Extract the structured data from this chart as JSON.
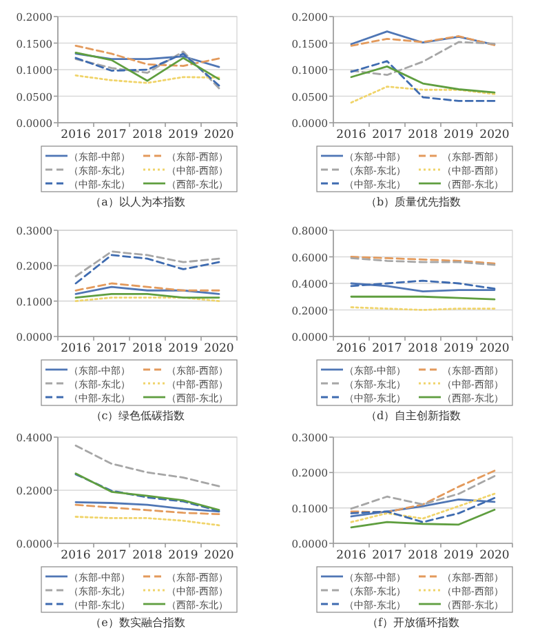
{
  "chart_data": [
    {
      "type": "line",
      "title": "（a）以人为本指数",
      "categories": [
        "2016",
        "2017",
        "2018",
        "2019",
        "2020"
      ],
      "ylim": [
        0,
        0.2
      ],
      "yticks": [
        {
          "value": 0,
          "label": "0.0000"
        },
        {
          "value": 0.05,
          "label": "0.0500"
        },
        {
          "value": 0.1,
          "label": "0.1000"
        },
        {
          "value": 0.15,
          "label": "0.1500"
        },
        {
          "value": 0.2,
          "label": "0.2000"
        }
      ],
      "grid": "y",
      "legend": "bottom",
      "series": [
        {
          "name": "（东部-中部）",
          "color": "#4f76b5",
          "line_style": "solid",
          "values": [
            0.13,
            0.12,
            0.12,
            0.125,
            0.105
          ]
        },
        {
          "name": "（东部-西部）",
          "color": "#e39a5c",
          "line_style": "dashed",
          "values": [
            0.145,
            0.13,
            0.11,
            0.107,
            0.121
          ]
        },
        {
          "name": "（东部-东北）",
          "color": "#a6a6a6",
          "line_style": "dashed",
          "values": [
            0.12,
            0.103,
            0.094,
            0.134,
            0.065
          ]
        },
        {
          "name": "（中部-西部）",
          "color": "#f0d46a",
          "line_style": "dotted",
          "values": [
            0.089,
            0.08,
            0.075,
            0.086,
            0.085
          ]
        },
        {
          "name": "（中部-东北）",
          "color": "#3e6bb0",
          "line_style": "dashed",
          "values": [
            0.122,
            0.098,
            0.1,
            0.13,
            0.07
          ]
        },
        {
          "name": "（西部-东北）",
          "color": "#5f9e3f",
          "line_style": "solid",
          "values": [
            0.132,
            0.118,
            0.079,
            0.122,
            0.082
          ]
        }
      ]
    },
    {
      "type": "line",
      "title": "（b）质量优先指数",
      "categories": [
        "2016",
        "2017",
        "2018",
        "2019",
        "2020"
      ],
      "ylim": [
        0,
        0.2
      ],
      "yticks": [
        {
          "value": 0,
          "label": "0.0000"
        },
        {
          "value": 0.05,
          "label": "0.0500"
        },
        {
          "value": 0.1,
          "label": "0.1000"
        },
        {
          "value": 0.15,
          "label": "0.1500"
        },
        {
          "value": 0.2,
          "label": "0.2000"
        }
      ],
      "grid": "y",
      "legend": "bottom",
      "series": [
        {
          "name": "（东部-中部）",
          "color": "#4f76b5",
          "line_style": "solid",
          "values": [
            0.148,
            0.172,
            0.151,
            0.162,
            0.147
          ]
        },
        {
          "name": "（东部-西部）",
          "color": "#e39a5c",
          "line_style": "dashed",
          "values": [
            0.145,
            0.158,
            0.152,
            0.163,
            0.146
          ]
        },
        {
          "name": "（东部-东北）",
          "color": "#a6a6a6",
          "line_style": "dashed",
          "values": [
            0.098,
            0.09,
            0.115,
            0.152,
            0.149
          ]
        },
        {
          "name": "（中部-西部）",
          "color": "#f0d46a",
          "line_style": "dotted",
          "values": [
            0.038,
            0.068,
            0.062,
            0.062,
            0.054
          ]
        },
        {
          "name": "（中部-东北）",
          "color": "#3e6bb0",
          "line_style": "dashed",
          "values": [
            0.096,
            0.116,
            0.048,
            0.041,
            0.041
          ]
        },
        {
          "name": "（西部-东北）",
          "color": "#5f9e3f",
          "line_style": "solid",
          "values": [
            0.086,
            0.106,
            0.074,
            0.063,
            0.057
          ]
        }
      ]
    },
    {
      "type": "line",
      "title": "（c）绿色低碳指数",
      "categories": [
        "2016",
        "2017",
        "2018",
        "2019",
        "2020"
      ],
      "ylim": [
        0,
        0.3
      ],
      "yticks": [
        {
          "value": 0,
          "label": "0.0000"
        },
        {
          "value": 0.1,
          "label": "0.1000"
        },
        {
          "value": 0.2,
          "label": "0.2000"
        },
        {
          "value": 0.3,
          "label": "0.3000"
        }
      ],
      "grid": "y",
      "legend": "bottom",
      "series": [
        {
          "name": "（东部-中部）",
          "color": "#4f76b5",
          "line_style": "solid",
          "values": [
            0.12,
            0.14,
            0.13,
            0.13,
            0.12
          ]
        },
        {
          "name": "（东部-西部）",
          "color": "#e39a5c",
          "line_style": "dashed",
          "values": [
            0.13,
            0.15,
            0.14,
            0.13,
            0.13
          ]
        },
        {
          "name": "（东部-东北）",
          "color": "#a6a6a6",
          "line_style": "dashed",
          "values": [
            0.17,
            0.24,
            0.23,
            0.21,
            0.22
          ]
        },
        {
          "name": "（中部-西部）",
          "color": "#f0d46a",
          "line_style": "dotted",
          "values": [
            0.1,
            0.11,
            0.11,
            0.11,
            0.1
          ]
        },
        {
          "name": "（中部-东北）",
          "color": "#3e6bb0",
          "line_style": "dashed",
          "values": [
            0.15,
            0.23,
            0.22,
            0.19,
            0.21
          ]
        },
        {
          "name": "（西部-东北）",
          "color": "#5f9e3f",
          "line_style": "solid",
          "values": [
            0.11,
            0.12,
            0.12,
            0.11,
            0.11
          ]
        }
      ]
    },
    {
      "type": "line",
      "title": "（d）自主创新指数",
      "categories": [
        "2016",
        "2017",
        "2018",
        "2019",
        "2020"
      ],
      "ylim": [
        0,
        0.8
      ],
      "yticks": [
        {
          "value": 0,
          "label": "0.0000"
        },
        {
          "value": 0.2,
          "label": "0.2000"
        },
        {
          "value": 0.4,
          "label": "0.4000"
        },
        {
          "value": 0.6,
          "label": "0.6000"
        },
        {
          "value": 0.8,
          "label": "0.8000"
        }
      ],
      "grid": "y",
      "legend": "bottom",
      "series": [
        {
          "name": "（东部-中部）",
          "color": "#4f76b5",
          "line_style": "solid",
          "values": [
            0.4,
            0.38,
            0.34,
            0.35,
            0.35
          ]
        },
        {
          "name": "（东部-西部）",
          "color": "#e39a5c",
          "line_style": "dashed",
          "values": [
            0.6,
            0.59,
            0.58,
            0.57,
            0.55
          ]
        },
        {
          "name": "（东部-东北）",
          "color": "#a6a6a6",
          "line_style": "dashed",
          "values": [
            0.59,
            0.57,
            0.56,
            0.56,
            0.54
          ]
        },
        {
          "name": "（中部-西部）",
          "color": "#f0d46a",
          "line_style": "dotted",
          "values": [
            0.22,
            0.21,
            0.2,
            0.21,
            0.21
          ]
        },
        {
          "name": "（中部-东北）",
          "color": "#3e6bb0",
          "line_style": "dashed",
          "values": [
            0.38,
            0.4,
            0.42,
            0.4,
            0.36
          ]
        },
        {
          "name": "（西部-东北）",
          "color": "#5f9e3f",
          "line_style": "solid",
          "values": [
            0.3,
            0.3,
            0.3,
            0.29,
            0.28
          ]
        }
      ]
    },
    {
      "type": "line",
      "title": "（e）数实融合指数",
      "categories": [
        "2016",
        "2017",
        "2018",
        "2019",
        "2020"
      ],
      "ylim": [
        0,
        0.4
      ],
      "yticks": [
        {
          "value": 0,
          "label": "0.0000"
        },
        {
          "value": 0.2,
          "label": "0.2000"
        },
        {
          "value": 0.4,
          "label": "0.4000"
        }
      ],
      "grid": "y",
      "legend": "bottom",
      "series": [
        {
          "name": "（东部-中部）",
          "color": "#4f76b5",
          "line_style": "solid",
          "values": [
            0.155,
            0.152,
            0.145,
            0.13,
            0.12
          ]
        },
        {
          "name": "（东部-西部）",
          "color": "#e39a5c",
          "line_style": "dashed",
          "values": [
            0.145,
            0.135,
            0.125,
            0.115,
            0.11
          ]
        },
        {
          "name": "（东部-东北）",
          "color": "#a6a6a6",
          "line_style": "dashed",
          "values": [
            0.368,
            0.3,
            0.267,
            0.248,
            0.215
          ]
        },
        {
          "name": "（中部-西部）",
          "color": "#f0d46a",
          "line_style": "dotted",
          "values": [
            0.1,
            0.095,
            0.095,
            0.085,
            0.068
          ]
        },
        {
          "name": "（中部-东北）",
          "color": "#3e6bb0",
          "line_style": "dashed",
          "values": [
            0.26,
            0.198,
            0.173,
            0.158,
            0.122
          ]
        },
        {
          "name": "（西部-东北）",
          "color": "#5f9e3f",
          "line_style": "solid",
          "values": [
            0.263,
            0.194,
            0.179,
            0.162,
            0.126
          ]
        }
      ]
    },
    {
      "type": "line",
      "title": "（f）开放循环指数",
      "categories": [
        "2016",
        "2017",
        "2018",
        "2019",
        "2020"
      ],
      "ylim": [
        0,
        0.3
      ],
      "yticks": [
        {
          "value": 0,
          "label": "0.0000"
        },
        {
          "value": 0.1,
          "label": "0.1000"
        },
        {
          "value": 0.2,
          "label": "0.2000"
        },
        {
          "value": 0.3,
          "label": "0.3000"
        }
      ],
      "grid": "y",
      "legend": "bottom",
      "series": [
        {
          "name": "（东部-中部）",
          "color": "#4f76b5",
          "line_style": "solid",
          "values": [
            0.076,
            0.09,
            0.105,
            0.124,
            0.117
          ]
        },
        {
          "name": "（东部-西部）",
          "color": "#e39a5c",
          "line_style": "dashed",
          "values": [
            0.09,
            0.088,
            0.11,
            0.16,
            0.205
          ]
        },
        {
          "name": "（东部-东北）",
          "color": "#a6a6a6",
          "line_style": "dashed",
          "values": [
            0.098,
            0.132,
            0.11,
            0.14,
            0.19
          ]
        },
        {
          "name": "（中部-西部）",
          "color": "#f0d46a",
          "line_style": "dotted",
          "values": [
            0.06,
            0.085,
            0.07,
            0.105,
            0.14
          ]
        },
        {
          "name": "（中部-东北）",
          "color": "#3e6bb0",
          "line_style": "dashed",
          "values": [
            0.085,
            0.09,
            0.06,
            0.085,
            0.128
          ]
        },
        {
          "name": "（西部-东北）",
          "color": "#5f9e3f",
          "line_style": "solid",
          "values": [
            0.045,
            0.06,
            0.055,
            0.053,
            0.095
          ]
        }
      ]
    }
  ]
}
